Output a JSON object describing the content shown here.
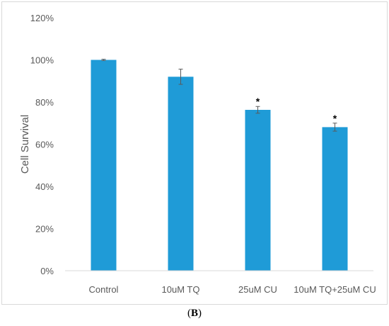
{
  "figure": {
    "panel_open": "(",
    "panel_letter": "B",
    "panel_close": ")"
  },
  "chart_data": {
    "type": "bar",
    "ylabel": "Cell Survival",
    "xlabel": "",
    "categories": [
      "Control",
      "10uM TQ",
      "25uM CU",
      "10uM TQ+25uM CU"
    ],
    "values": [
      100,
      92,
      76.3,
      68.1
    ],
    "error": [
      0.3,
      3.6,
      1.6,
      1.9
    ],
    "significance": [
      "",
      "",
      "*",
      "*"
    ],
    "ylim": [
      0,
      120
    ],
    "yticks": [
      0,
      20,
      40,
      60,
      80,
      100,
      120
    ],
    "ytick_labels": [
      "0%",
      "20%",
      "40%",
      "60%",
      "80%",
      "100%",
      "120%"
    ],
    "grid": false,
    "legend": "none",
    "colors": {
      "bar": "#1f9bd7",
      "error_bar": "#5a5a5a",
      "axis": "#d9d9d9",
      "tick_text": "#595959",
      "ylabel_text": "#595959",
      "significance": "#000000"
    }
  }
}
